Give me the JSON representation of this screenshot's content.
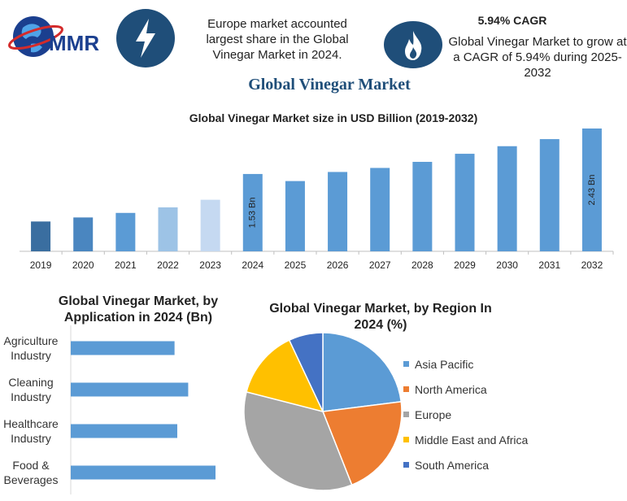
{
  "brand": {
    "logo_text": "MMR"
  },
  "header": {
    "headline": "Europe market accounted largest share in the Global Vinegar Market in 2024.",
    "cagr_title": "5.94% CAGR",
    "cagr_text": "Global Vinegar Market to grow at a CAGR of 5.94% during 2025-2032",
    "main_title": "Global Vinegar Market",
    "icons": [
      "lightning-bolt-icon",
      "flame-icon"
    ]
  },
  "chart_data": [
    {
      "type": "bar",
      "title": "Global Vinegar Market size in USD Billion (2019-2032)",
      "categories": [
        "2019",
        "2020",
        "2021",
        "2022",
        "2023",
        "2024",
        "2025",
        "2026",
        "2027",
        "2028",
        "2029",
        "2030",
        "2031",
        "2032"
      ],
      "values": [
        0.59,
        0.67,
        0.76,
        0.87,
        1.02,
        1.53,
        1.39,
        1.57,
        1.65,
        1.77,
        1.93,
        2.08,
        2.22,
        2.43
      ],
      "bar_colors": [
        "#3a6ea0",
        "#4a86c0",
        "#5b9bd5",
        "#9dc3e6",
        "#c5d9f1",
        "#5b9bd5",
        "#5b9bd5",
        "#5b9bd5",
        "#5b9bd5",
        "#5b9bd5",
        "#5b9bd5",
        "#5b9bd5",
        "#5b9bd5",
        "#5b9bd5"
      ],
      "data_labels": [
        {
          "category": "2024",
          "text": "1.53 Bn"
        },
        {
          "category": "2032",
          "text": "2.43 Bn"
        }
      ],
      "ylim": [
        0,
        2.43
      ],
      "grid": false,
      "legend": "none"
    },
    {
      "type": "bar",
      "orientation": "horizontal",
      "title": "Global Vinegar Market, by Application in 2024 (Bn)",
      "categories": [
        "Agriculture Industry",
        "Cleaning Industry",
        "Healthcare Industry",
        "Food & Beverages"
      ],
      "values": [
        0.38,
        0.43,
        0.39,
        0.53
      ],
      "color": "#5b9bd5",
      "grid": false
    },
    {
      "type": "pie",
      "title": "Global Vinegar Market, by Region In 2024 (%)",
      "categories": [
        "Asia Pacific",
        "North America",
        "Europe",
        "Middle East and Africa",
        "South America"
      ],
      "values": [
        23,
        21,
        35,
        14,
        7
      ],
      "colors": [
        "#5b9bd5",
        "#ed7d31",
        "#a5a5a5",
        "#ffc000",
        "#4472c4"
      ],
      "legend": "right"
    }
  ]
}
